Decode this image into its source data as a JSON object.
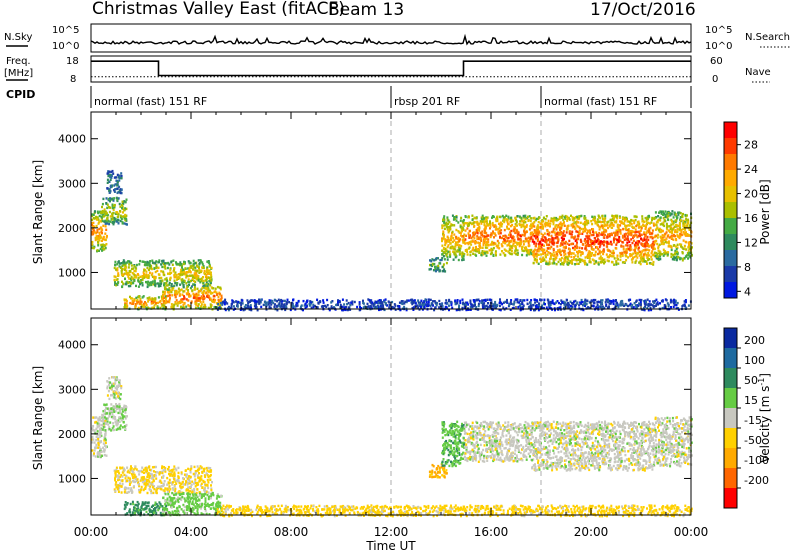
{
  "header": {
    "station": "Christmas Valley East (fitACF)",
    "beam": "Beam 13",
    "date": "17/Oct/2016"
  },
  "aux_panels": {
    "nsky_label": "N.Sky",
    "nsearch_label": "N.Search",
    "freq_label_line1": "Freq.",
    "freq_label_line2": "[MHz]",
    "nave_label": "Nave",
    "cpid_label": "CPID",
    "nsky_ticks": [
      "10^5",
      "10^0"
    ],
    "freq_ticks": [
      "18",
      "8"
    ],
    "nave_ticks": [
      "60",
      "0"
    ]
  },
  "cpid_modes": [
    {
      "label": "normal (fast) 151 RF",
      "start_hour": 0,
      "end_hour": 12
    },
    {
      "label": "rbsp 201 RF",
      "start_hour": 12,
      "end_hour": 18
    },
    {
      "label": "normal (fast) 151 RF",
      "start_hour": 18,
      "end_hour": 24
    }
  ],
  "power_colorbar": {
    "label": "Power [dB]",
    "ticks": [
      "28",
      "24",
      "20",
      "16",
      "12",
      "8",
      "4"
    ],
    "colors": [
      "#ff0000",
      "#ff3a00",
      "#ff7a00",
      "#ffaa00",
      "#e7c000",
      "#aabf00",
      "#44aa44",
      "#2e8a5e",
      "#2a6aa0",
      "#1a3aa8",
      "#0018e0"
    ]
  },
  "velocity_colorbar": {
    "label_main": "Velocity",
    "label_units": "[m s",
    "label_exp": "-1",
    "label_close": "]",
    "ticks": [
      "200",
      "100",
      "50",
      "15",
      "-15",
      "-50",
      "-100",
      "-200"
    ],
    "colors": [
      "#0a2aa0",
      "#1e6aa0",
      "#2e8a5e",
      "#66cc44",
      "#c8c8c0",
      "#ffd000",
      "#ffaa00",
      "#ff6600",
      "#ff0000"
    ]
  },
  "x_axis": {
    "title": "Time UT",
    "tick_labels": [
      "00:00",
      "04:00",
      "08:00",
      "12:00",
      "16:00",
      "20:00",
      "00:00"
    ]
  },
  "chart_data": {
    "type": "heatmap",
    "x_range_hours": [
      0,
      24
    ],
    "y_range_km": [
      180,
      4600
    ],
    "ylabel": "Slant Range [km]",
    "xlabel": "Time UT",
    "y_ticks": [
      1000,
      2000,
      3000,
      4000
    ],
    "y_tick_labels": [
      "1000",
      "2000",
      "3000",
      "4000"
    ],
    "panels": [
      "power",
      "velocity"
    ],
    "freq_trace": [
      {
        "start": 0,
        "end": 2.7,
        "mhz": 16
      },
      {
        "start": 2.7,
        "end": 14.9,
        "mhz": 10.5
      },
      {
        "start": 14.9,
        "end": 24,
        "mhz": 16
      }
    ],
    "nave_level": 12,
    "scatter_regions": [
      {
        "t0": 0.0,
        "t1": 0.6,
        "r0": 1500,
        "r1": 2400,
        "power": 24,
        "velocity": 0
      },
      {
        "t0": 0.4,
        "t1": 1.4,
        "r0": 2100,
        "r1": 2700,
        "power": 18,
        "velocity": 10
      },
      {
        "t0": 0.6,
        "t1": 1.2,
        "r0": 2800,
        "r1": 3300,
        "power": 10,
        "velocity": 0
      },
      {
        "t0": 0.9,
        "t1": 4.8,
        "r0": 700,
        "r1": 1300,
        "power": 20,
        "velocity": -20
      },
      {
        "t0": 1.3,
        "t1": 3.0,
        "r0": 200,
        "r1": 500,
        "power": 24,
        "velocity": 60
      },
      {
        "t0": 2.8,
        "t1": 5.2,
        "r0": 200,
        "r1": 700,
        "power": 26,
        "velocity": 30
      },
      {
        "t0": 5.0,
        "t1": 24.0,
        "r0": 180,
        "r1": 420,
        "power": 6,
        "velocity": -30
      },
      {
        "t0": 13.5,
        "t1": 14.2,
        "r0": 1050,
        "r1": 1350,
        "power": 14,
        "velocity": -60
      },
      {
        "t0": 14.0,
        "t1": 14.9,
        "r0": 1300,
        "r1": 2300,
        "power": 22,
        "velocity": 40
      },
      {
        "t0": 14.9,
        "t1": 17.6,
        "r0": 1400,
        "r1": 2300,
        "power": 26,
        "velocity": 0
      },
      {
        "t0": 17.6,
        "t1": 22.5,
        "r0": 1200,
        "r1": 2300,
        "power": 28,
        "velocity": 0
      },
      {
        "t0": 22.5,
        "t1": 24.0,
        "r0": 1300,
        "r1": 2400,
        "power": 22,
        "velocity": 0
      }
    ]
  }
}
